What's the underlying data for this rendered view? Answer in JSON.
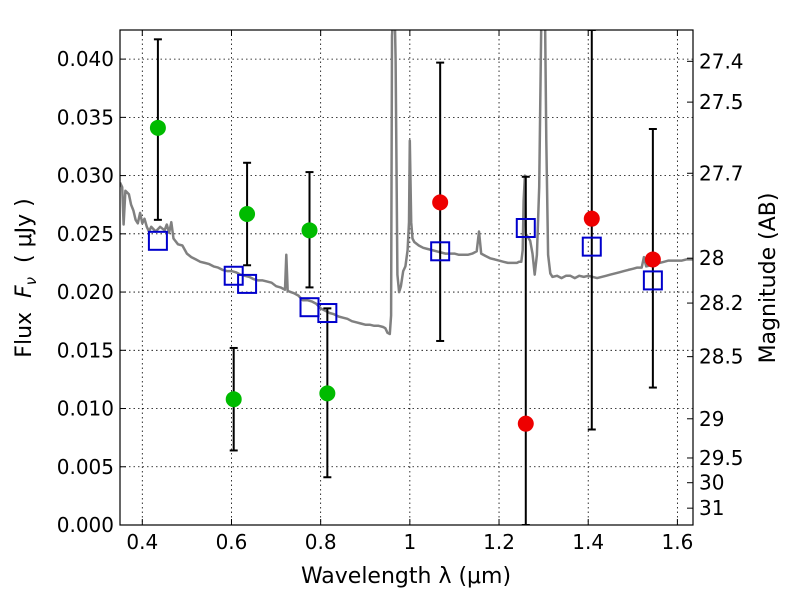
{
  "chart_data": {
    "type": "scatter",
    "xlabel": "Wavelength  λ (μm)",
    "ylabel_parts": [
      "Flux  ",
      "F",
      "ν",
      "  ( μJy )"
    ],
    "ylabel_right": "Magnitude (AB)",
    "xlim": [
      0.35,
      1.635
    ],
    "ylim": [
      0.0,
      0.0425
    ],
    "grid": true,
    "x_ticks": [
      {
        "value": 0.4,
        "label": "0.4"
      },
      {
        "value": 0.6,
        "label": "0.6"
      },
      {
        "value": 0.8,
        "label": "0.8"
      },
      {
        "value": 1.0,
        "label": "1"
      },
      {
        "value": 1.2,
        "label": "1.2"
      },
      {
        "value": 1.4,
        "label": "1.4"
      },
      {
        "value": 1.6,
        "label": "1.6"
      }
    ],
    "y_ticks": [
      {
        "value": 0.0,
        "label": "0.000"
      },
      {
        "value": 0.005,
        "label": "0.005"
      },
      {
        "value": 0.01,
        "label": "0.010"
      },
      {
        "value": 0.015,
        "label": "0.015"
      },
      {
        "value": 0.02,
        "label": "0.020"
      },
      {
        "value": 0.025,
        "label": "0.025"
      },
      {
        "value": 0.03,
        "label": "0.030"
      },
      {
        "value": 0.035,
        "label": "0.035"
      },
      {
        "value": 0.04,
        "label": "0.040"
      }
    ],
    "mag_ticks": [
      {
        "mag": 27.4,
        "label": "27.4"
      },
      {
        "mag": 27.5,
        "label": "27.5"
      },
      {
        "mag": 27.7,
        "label": "27.7"
      },
      {
        "mag": 28.0,
        "label": "28"
      },
      {
        "mag": 28.2,
        "label": "28.2"
      },
      {
        "mag": 28.5,
        "label": "28.5"
      },
      {
        "mag": 29.0,
        "label": "29"
      },
      {
        "mag": 29.5,
        "label": "29.5"
      },
      {
        "mag": 30.0,
        "label": "30"
      },
      {
        "mag": 31.0,
        "label": "31"
      }
    ],
    "sed_color": "#808080",
    "sed": [
      [
        0.35,
        0.0294
      ],
      [
        0.355,
        0.029
      ],
      [
        0.358,
        0.0258
      ],
      [
        0.362,
        0.0287
      ],
      [
        0.37,
        0.0284
      ],
      [
        0.375,
        0.0275
      ],
      [
        0.38,
        0.027
      ],
      [
        0.385,
        0.0262
      ],
      [
        0.39,
        0.0259
      ],
      [
        0.395,
        0.0268
      ],
      [
        0.4,
        0.0259
      ],
      [
        0.405,
        0.0263
      ],
      [
        0.41,
        0.0256
      ],
      [
        0.415,
        0.0252
      ],
      [
        0.42,
        0.0256
      ],
      [
        0.43,
        0.0252
      ],
      [
        0.44,
        0.0256
      ],
      [
        0.45,
        0.0253
      ],
      [
        0.455,
        0.0258
      ],
      [
        0.46,
        0.0251
      ],
      [
        0.465,
        0.026
      ],
      [
        0.47,
        0.0246
      ],
      [
        0.48,
        0.0241
      ],
      [
        0.49,
        0.024
      ],
      [
        0.5,
        0.0233
      ],
      [
        0.51,
        0.023
      ],
      [
        0.52,
        0.0228
      ],
      [
        0.53,
        0.0226
      ],
      [
        0.54,
        0.0225
      ],
      [
        0.55,
        0.0224
      ],
      [
        0.56,
        0.0222
      ],
      [
        0.57,
        0.0221
      ],
      [
        0.58,
        0.0219
      ],
      [
        0.59,
        0.0218
      ],
      [
        0.6,
        0.0218
      ],
      [
        0.61,
        0.0217
      ],
      [
        0.62,
        0.0215
      ],
      [
        0.63,
        0.0214
      ],
      [
        0.64,
        0.0213
      ],
      [
        0.65,
        0.0211
      ],
      [
        0.66,
        0.021
      ],
      [
        0.67,
        0.021
      ],
      [
        0.68,
        0.0209
      ],
      [
        0.69,
        0.0208
      ],
      [
        0.7,
        0.0205
      ],
      [
        0.71,
        0.0204
      ],
      [
        0.72,
        0.0202
      ],
      [
        0.723,
        0.0232
      ],
      [
        0.726,
        0.0201
      ],
      [
        0.74,
        0.0199
      ],
      [
        0.75,
        0.0197
      ],
      [
        0.76,
        0.0193
      ],
      [
        0.77,
        0.0193
      ],
      [
        0.78,
        0.0192
      ],
      [
        0.79,
        0.019
      ],
      [
        0.8,
        0.0186
      ],
      [
        0.81,
        0.0184
      ],
      [
        0.82,
        0.0182
      ],
      [
        0.83,
        0.0181
      ],
      [
        0.84,
        0.0179
      ],
      [
        0.85,
        0.0178
      ],
      [
        0.86,
        0.0177
      ],
      [
        0.87,
        0.0175
      ],
      [
        0.88,
        0.0174
      ],
      [
        0.89,
        0.0173
      ],
      [
        0.9,
        0.0172
      ],
      [
        0.91,
        0.0172
      ],
      [
        0.92,
        0.0171
      ],
      [
        0.93,
        0.0171
      ],
      [
        0.94,
        0.017
      ],
      [
        0.945,
        0.0169
      ],
      [
        0.95,
        0.0165
      ],
      [
        0.955,
        0.0164
      ],
      [
        0.958,
        0.018
      ],
      [
        0.96,
        0.042
      ],
      [
        0.963,
        0.044
      ],
      [
        0.966,
        0.044
      ],
      [
        0.968,
        0.04
      ],
      [
        0.972,
        0.0215
      ],
      [
        0.976,
        0.02
      ],
      [
        0.98,
        0.0205
      ],
      [
        0.985,
        0.0218
      ],
      [
        0.99,
        0.0222
      ],
      [
        0.995,
        0.0236
      ],
      [
        0.998,
        0.026
      ],
      [
        1.0,
        0.033
      ],
      [
        1.003,
        0.026
      ],
      [
        1.006,
        0.0246
      ],
      [
        1.01,
        0.0243
      ],
      [
        1.02,
        0.024
      ],
      [
        1.03,
        0.0238
      ],
      [
        1.04,
        0.0237
      ],
      [
        1.05,
        0.0236
      ],
      [
        1.06,
        0.0235
      ],
      [
        1.07,
        0.0234
      ],
      [
        1.08,
        0.0233
      ],
      [
        1.09,
        0.0233
      ],
      [
        1.1,
        0.0233
      ],
      [
        1.11,
        0.0232
      ],
      [
        1.12,
        0.0232
      ],
      [
        1.13,
        0.0232
      ],
      [
        1.14,
        0.0233
      ],
      [
        1.15,
        0.0235
      ],
      [
        1.155,
        0.0252
      ],
      [
        1.16,
        0.0233
      ],
      [
        1.17,
        0.0231
      ],
      [
        1.18,
        0.0229
      ],
      [
        1.19,
        0.0228
      ],
      [
        1.2,
        0.0227
      ],
      [
        1.21,
        0.0226
      ],
      [
        1.22,
        0.0225
      ],
      [
        1.23,
        0.0225
      ],
      [
        1.24,
        0.0225
      ],
      [
        1.245,
        0.0226
      ],
      [
        1.25,
        0.0226
      ],
      [
        1.253,
        0.0236
      ],
      [
        1.255,
        0.0278
      ],
      [
        1.258,
        0.03
      ],
      [
        1.26,
        0.025
      ],
      [
        1.27,
        0.0244
      ],
      [
        1.275,
        0.0233
      ],
      [
        1.28,
        0.0215
      ],
      [
        1.285,
        0.0232
      ],
      [
        1.29,
        0.029
      ],
      [
        1.295,
        0.044
      ],
      [
        1.3,
        0.044
      ],
      [
        1.303,
        0.044
      ],
      [
        1.306,
        0.033
      ],
      [
        1.31,
        0.0232
      ],
      [
        1.315,
        0.0216
      ],
      [
        1.32,
        0.0213
      ],
      [
        1.33,
        0.0214
      ],
      [
        1.34,
        0.0212
      ],
      [
        1.35,
        0.0214
      ],
      [
        1.36,
        0.0214
      ],
      [
        1.37,
        0.0212
      ],
      [
        1.38,
        0.0214
      ],
      [
        1.39,
        0.0213
      ],
      [
        1.4,
        0.0214
      ],
      [
        1.41,
        0.0213
      ],
      [
        1.42,
        0.0212
      ],
      [
        1.43,
        0.0213
      ],
      [
        1.44,
        0.0214
      ],
      [
        1.45,
        0.0215
      ],
      [
        1.46,
        0.0216
      ],
      [
        1.47,
        0.0217
      ],
      [
        1.48,
        0.0218
      ],
      [
        1.49,
        0.0219
      ],
      [
        1.5,
        0.022
      ],
      [
        1.51,
        0.0221
      ],
      [
        1.52,
        0.0221
      ],
      [
        1.525,
        0.023
      ],
      [
        1.53,
        0.0222
      ],
      [
        1.54,
        0.0223
      ],
      [
        1.55,
        0.0224
      ],
      [
        1.56,
        0.0225
      ],
      [
        1.57,
        0.0226
      ],
      [
        1.58,
        0.0227
      ],
      [
        1.59,
        0.0227
      ],
      [
        1.6,
        0.0227
      ],
      [
        1.61,
        0.0227
      ],
      [
        1.62,
        0.0228
      ],
      [
        1.635,
        0.0228
      ]
    ],
    "errorbars": [
      {
        "x": 0.435,
        "low": 0.0262,
        "high": 0.0417
      },
      {
        "x": 0.605,
        "low": 0.0064,
        "high": 0.0152
      },
      {
        "x": 0.635,
        "low": 0.0223,
        "high": 0.0311
      },
      {
        "x": 0.775,
        "low": 0.0204,
        "high": 0.0303
      },
      {
        "x": 0.815,
        "low": 0.0041,
        "high": 0.0186
      },
      {
        "x": 1.068,
        "low": 0.0158,
        "high": 0.0397
      },
      {
        "x": 1.26,
        "low": 0.0,
        "high": 0.0299
      },
      {
        "x": 1.408,
        "low": 0.0082,
        "high": 0.0425
      },
      {
        "x": 1.545,
        "low": 0.0118,
        "high": 0.034
      }
    ],
    "series": [
      {
        "marker": "circle",
        "color": "#00bb00",
        "points": [
          {
            "x": 0.435,
            "y": 0.0341
          },
          {
            "x": 0.605,
            "y": 0.0108
          },
          {
            "x": 0.635,
            "y": 0.0267
          },
          {
            "x": 0.775,
            "y": 0.0253
          },
          {
            "x": 0.815,
            "y": 0.0113
          }
        ]
      },
      {
        "marker": "circle",
        "color": "#ee0000",
        "points": [
          {
            "x": 1.068,
            "y": 0.0277
          },
          {
            "x": 1.26,
            "y": 0.0087
          },
          {
            "x": 1.408,
            "y": 0.0263
          },
          {
            "x": 1.545,
            "y": 0.0228
          }
        ]
      },
      {
        "marker": "square",
        "color": "#0000cc",
        "points": [
          {
            "x": 0.435,
            "y": 0.0244
          },
          {
            "x": 0.605,
            "y": 0.0214
          },
          {
            "x": 0.635,
            "y": 0.0207
          },
          {
            "x": 0.775,
            "y": 0.0187
          },
          {
            "x": 0.815,
            "y": 0.0182
          },
          {
            "x": 1.068,
            "y": 0.0235
          },
          {
            "x": 1.26,
            "y": 0.0255
          },
          {
            "x": 1.408,
            "y": 0.0239
          },
          {
            "x": 1.545,
            "y": 0.021
          }
        ]
      }
    ]
  }
}
